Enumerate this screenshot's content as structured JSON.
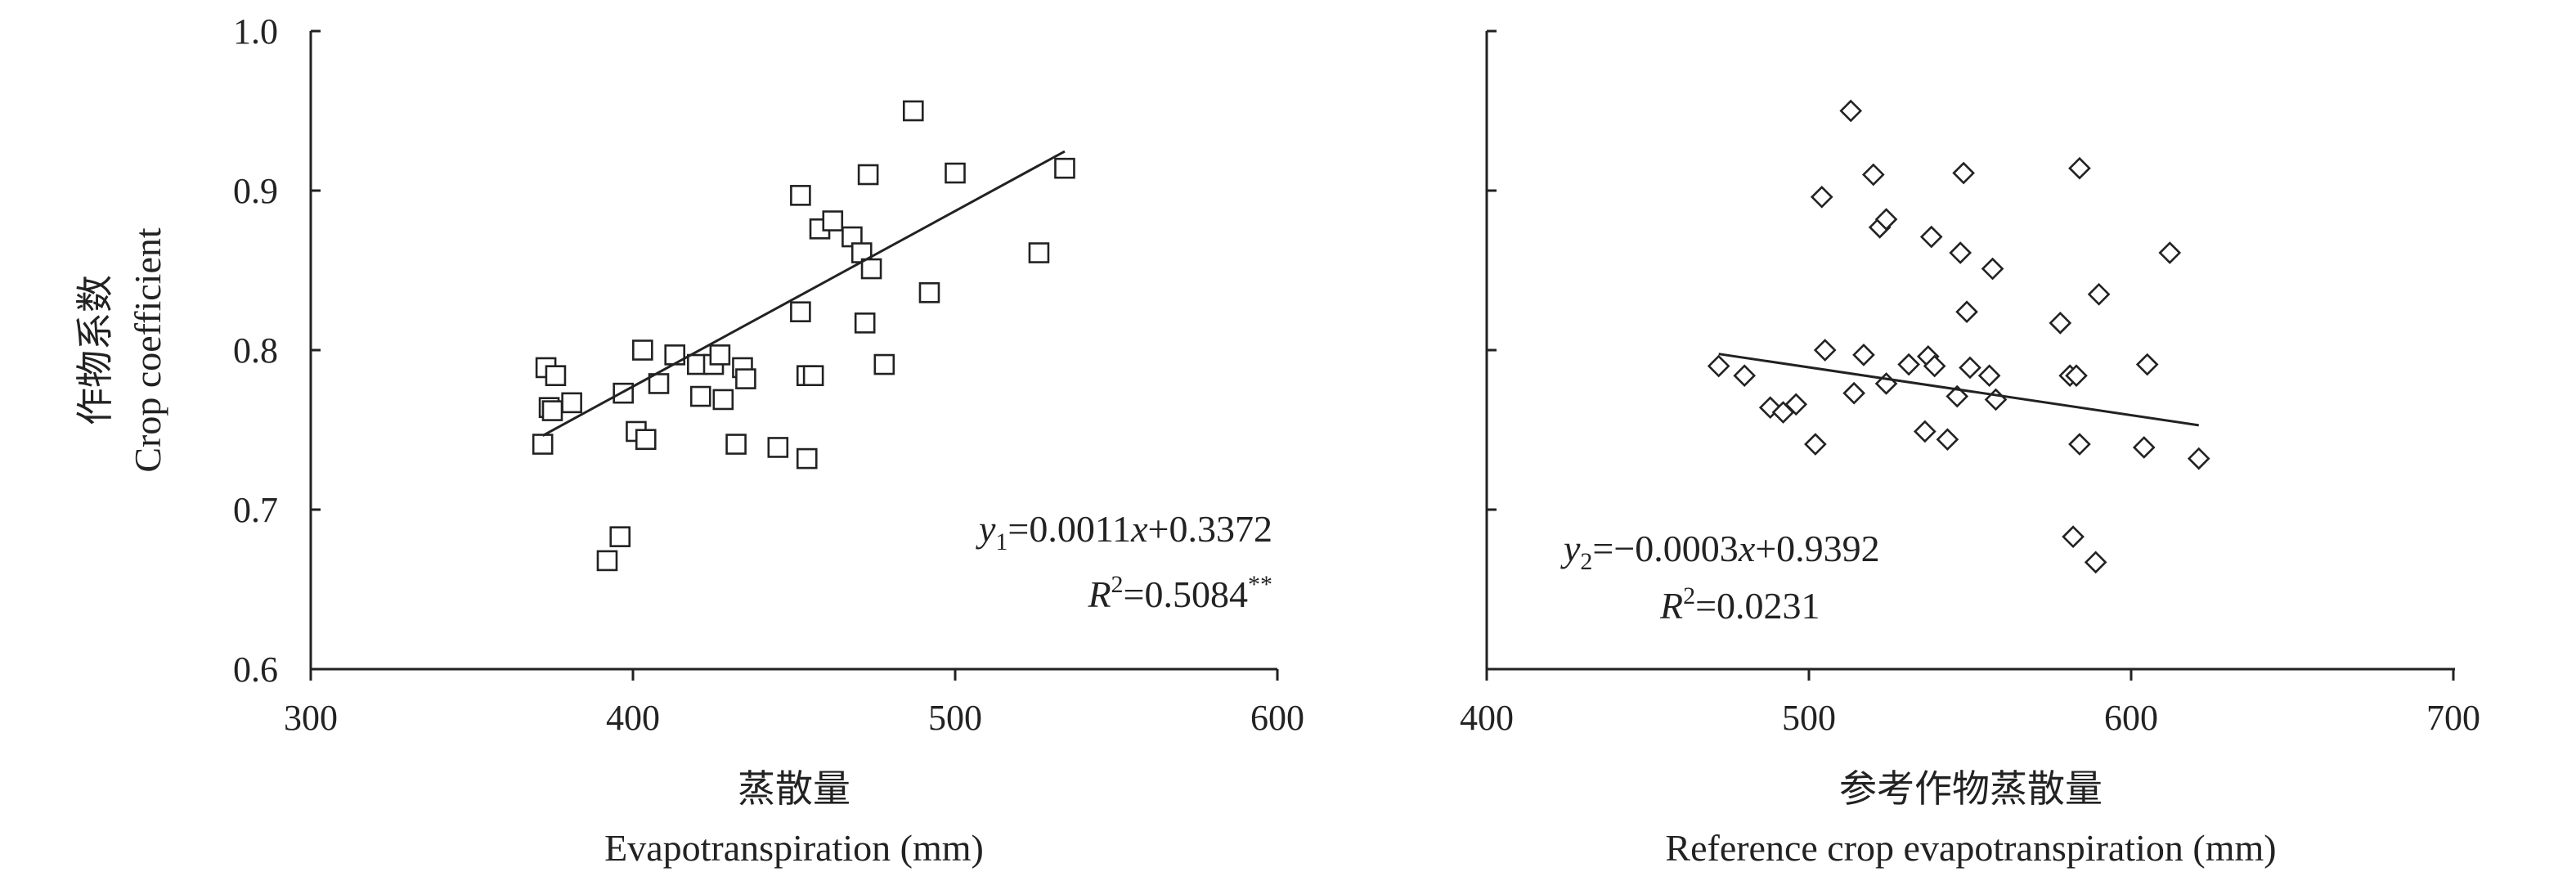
{
  "chart_data": [
    {
      "type": "scatter",
      "marker": "square",
      "title": "",
      "xlabel_cn": "蒸散量",
      "xlabel": "Evapotranspiration (mm)",
      "ylabel_cn": "作物系数",
      "ylabel": "Crop coefficient",
      "xlim": [
        300,
        600
      ],
      "ylim": [
        0.6,
        1.0
      ],
      "xticks": [
        "300",
        "400",
        "500",
        "600"
      ],
      "yticks": [
        "0.6",
        "0.7",
        "0.8",
        "0.9",
        "1.0"
      ],
      "grid": false,
      "points": [
        {
          "x": 372,
          "y": 0.741
        },
        {
          "x": 373,
          "y": 0.789
        },
        {
          "x": 374,
          "y": 0.764
        },
        {
          "x": 375,
          "y": 0.762
        },
        {
          "x": 376,
          "y": 0.784
        },
        {
          "x": 381,
          "y": 0.767
        },
        {
          "x": 392,
          "y": 0.668
        },
        {
          "x": 396,
          "y": 0.683
        },
        {
          "x": 397,
          "y": 0.773
        },
        {
          "x": 401,
          "y": 0.749
        },
        {
          "x": 403,
          "y": 0.8
        },
        {
          "x": 404,
          "y": 0.744
        },
        {
          "x": 408,
          "y": 0.779
        },
        {
          "x": 413,
          "y": 0.797
        },
        {
          "x": 420,
          "y": 0.791
        },
        {
          "x": 421,
          "y": 0.771
        },
        {
          "x": 425,
          "y": 0.791
        },
        {
          "x": 427,
          "y": 0.797
        },
        {
          "x": 428,
          "y": 0.769
        },
        {
          "x": 432,
          "y": 0.741
        },
        {
          "x": 434,
          "y": 0.789
        },
        {
          "x": 435,
          "y": 0.782
        },
        {
          "x": 445,
          "y": 0.739
        },
        {
          "x": 452,
          "y": 0.897
        },
        {
          "x": 452,
          "y": 0.824
        },
        {
          "x": 454,
          "y": 0.784
        },
        {
          "x": 454,
          "y": 0.732
        },
        {
          "x": 456,
          "y": 0.784
        },
        {
          "x": 458,
          "y": 0.876
        },
        {
          "x": 462,
          "y": 0.881
        },
        {
          "x": 468,
          "y": 0.871
        },
        {
          "x": 471,
          "y": 0.861
        },
        {
          "x": 472,
          "y": 0.817
        },
        {
          "x": 473,
          "y": 0.91
        },
        {
          "x": 474,
          "y": 0.851
        },
        {
          "x": 478,
          "y": 0.791
        },
        {
          "x": 487,
          "y": 0.95
        },
        {
          "x": 492,
          "y": 0.836
        },
        {
          "x": 500,
          "y": 0.911
        },
        {
          "x": 526,
          "y": 0.861
        },
        {
          "x": 534,
          "y": 0.914
        }
      ],
      "trendline": {
        "slope": 0.0011,
        "intercept": 0.3372,
        "x_range": [
          372,
          534
        ]
      },
      "equation": {
        "y_symbol": "y",
        "subscript": "1",
        "rhs": "=0.0011",
        "x_symbol": "x",
        "rest": "+0.3372"
      },
      "r2": {
        "symbol": "R",
        "sup": "2",
        "value": "=0.5084",
        "sig": "**"
      }
    },
    {
      "type": "scatter",
      "marker": "diamond",
      "title": "",
      "xlabel_cn": "参考作物蒸散量",
      "xlabel": "Reference crop evapotranspiration (mm)",
      "xlim": [
        400,
        700
      ],
      "ylim": [
        0.6,
        1.0
      ],
      "xticks": [
        "400",
        "500",
        "600",
        "700"
      ],
      "grid": false,
      "points": [
        {
          "x": 472,
          "y": 0.79
        },
        {
          "x": 480,
          "y": 0.784
        },
        {
          "x": 488,
          "y": 0.764
        },
        {
          "x": 492,
          "y": 0.761
        },
        {
          "x": 496,
          "y": 0.766
        },
        {
          "x": 502,
          "y": 0.741
        },
        {
          "x": 504,
          "y": 0.896
        },
        {
          "x": 505,
          "y": 0.8
        },
        {
          "x": 513,
          "y": 0.95
        },
        {
          "x": 514,
          "y": 0.773
        },
        {
          "x": 517,
          "y": 0.797
        },
        {
          "x": 520,
          "y": 0.91
        },
        {
          "x": 522,
          "y": 0.877
        },
        {
          "x": 524,
          "y": 0.882
        },
        {
          "x": 524,
          "y": 0.779
        },
        {
          "x": 531,
          "y": 0.791
        },
        {
          "x": 536,
          "y": 0.749
        },
        {
          "x": 537,
          "y": 0.796
        },
        {
          "x": 538,
          "y": 0.871
        },
        {
          "x": 539,
          "y": 0.79
        },
        {
          "x": 543,
          "y": 0.744
        },
        {
          "x": 546,
          "y": 0.771
        },
        {
          "x": 547,
          "y": 0.861
        },
        {
          "x": 548,
          "y": 0.911
        },
        {
          "x": 549,
          "y": 0.824
        },
        {
          "x": 550,
          "y": 0.789
        },
        {
          "x": 556,
          "y": 0.784
        },
        {
          "x": 557,
          "y": 0.851
        },
        {
          "x": 558,
          "y": 0.769
        },
        {
          "x": 578,
          "y": 0.817
        },
        {
          "x": 581,
          "y": 0.784
        },
        {
          "x": 582,
          "y": 0.683
        },
        {
          "x": 583,
          "y": 0.784
        },
        {
          "x": 584,
          "y": 0.741
        },
        {
          "x": 584,
          "y": 0.914
        },
        {
          "x": 589,
          "y": 0.667
        },
        {
          "x": 590,
          "y": 0.835
        },
        {
          "x": 604,
          "y": 0.739
        },
        {
          "x": 605,
          "y": 0.791
        },
        {
          "x": 612,
          "y": 0.861
        },
        {
          "x": 621,
          "y": 0.732
        }
      ],
      "trendline": {
        "slope": -0.0003,
        "intercept": 0.9392,
        "x_range": [
          472,
          621
        ]
      },
      "equation": {
        "y_symbol": "y",
        "subscript": "2",
        "rhs": "=−0.0003",
        "x_symbol": "x",
        "rest": "+0.9392"
      },
      "r2": {
        "symbol": "R",
        "sup": "2",
        "value": "=0.0231",
        "sig": ""
      }
    }
  ]
}
